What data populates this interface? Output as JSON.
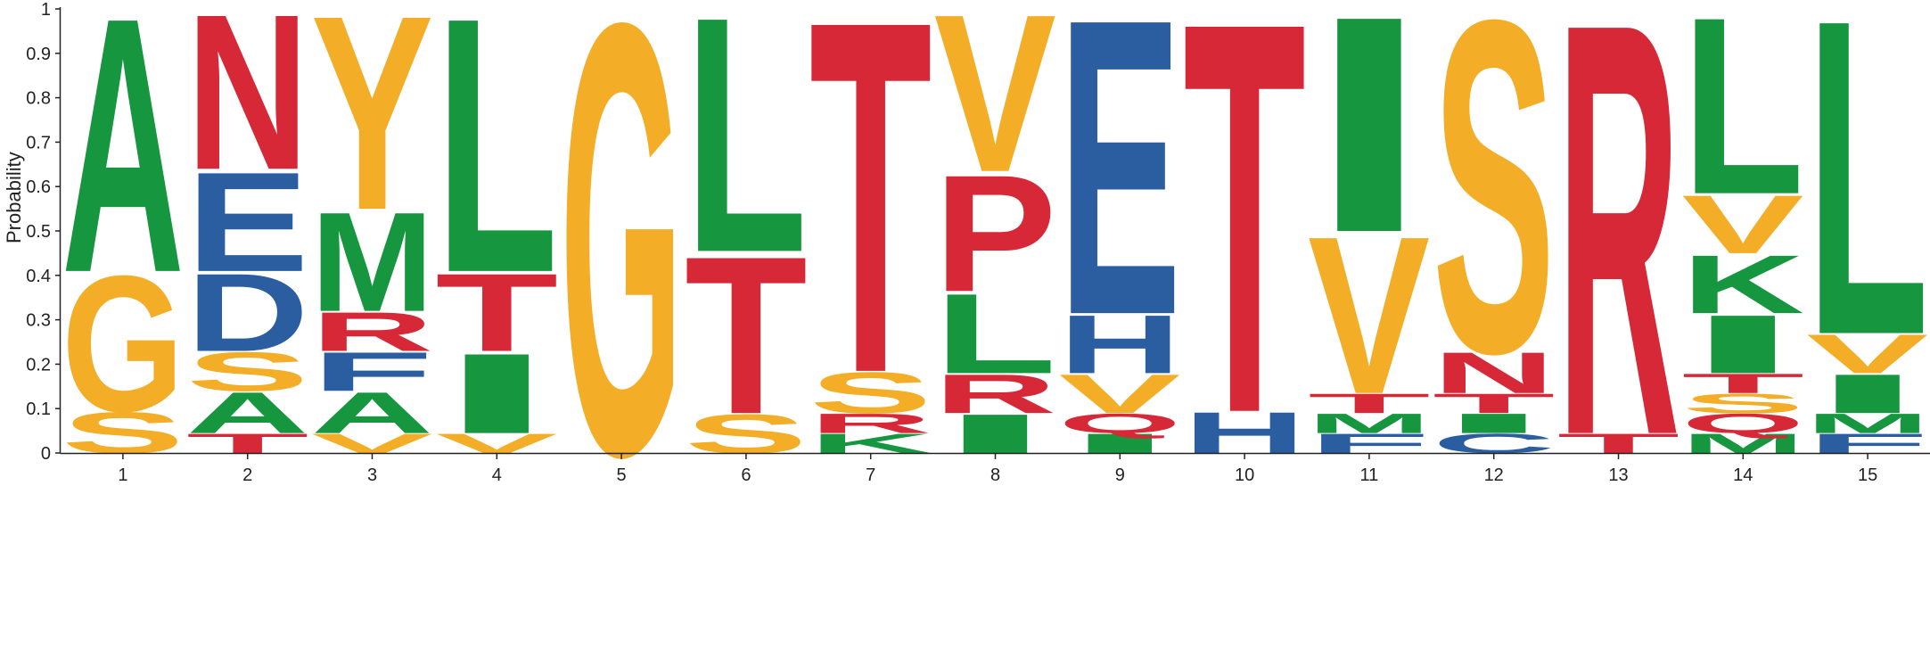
{
  "colors": {
    "green": "#16963f",
    "red": "#d62837",
    "orange": "#f3ad27",
    "blue": "#2a5ea1",
    "axis": "#222222"
  },
  "chart_data": {
    "type": "sequence-logo",
    "title": "",
    "xlabel": "",
    "ylabel": "Probability",
    "ylim": [
      0,
      1
    ],
    "yticks": [
      "0",
      "0.1",
      "0.2",
      "0.3",
      "0.4",
      "0.5",
      "0.6",
      "0.7",
      "0.8",
      "0.9",
      "1"
    ],
    "positions": [
      {
        "label": "1",
        "letters": [
          {
            "letter": "S",
            "color": "orange",
            "prob": 0.095
          },
          {
            "letter": "G",
            "color": "orange",
            "prob": 0.315
          },
          {
            "letter": "A",
            "color": "green",
            "prob": 0.59
          }
        ]
      },
      {
        "label": "2",
        "letters": [
          {
            "letter": "T",
            "color": "red",
            "prob": 0.045
          },
          {
            "letter": "A",
            "color": "green",
            "prob": 0.095
          },
          {
            "letter": "S",
            "color": "orange",
            "prob": 0.09
          },
          {
            "letter": "D",
            "color": "blue",
            "prob": 0.18
          },
          {
            "letter": "E",
            "color": "blue",
            "prob": 0.23
          },
          {
            "letter": "N",
            "color": "red",
            "prob": 0.36
          }
        ]
      },
      {
        "label": "3",
        "letters": [
          {
            "letter": "V",
            "color": "orange",
            "prob": 0.045
          },
          {
            "letter": "A",
            "color": "green",
            "prob": 0.095
          },
          {
            "letter": "F",
            "color": "blue",
            "prob": 0.09
          },
          {
            "letter": "R",
            "color": "red",
            "prob": 0.09
          },
          {
            "letter": "M",
            "color": "green",
            "prob": 0.23
          },
          {
            "letter": "Y",
            "color": "orange",
            "prob": 0.45
          }
        ]
      },
      {
        "label": "4",
        "letters": [
          {
            "letter": "V",
            "color": "orange",
            "prob": 0.045
          },
          {
            "letter": "I",
            "color": "green",
            "prob": 0.185
          },
          {
            "letter": "T",
            "color": "red",
            "prob": 0.18
          },
          {
            "letter": "L",
            "color": "green",
            "prob": 0.59
          }
        ]
      },
      {
        "label": "5",
        "letters": [
          {
            "letter": "G",
            "color": "orange",
            "prob": 1.0
          }
        ]
      },
      {
        "label": "6",
        "letters": [
          {
            "letter": "S",
            "color": "orange",
            "prob": 0.09
          },
          {
            "letter": "T",
            "color": "red",
            "prob": 0.365
          },
          {
            "letter": "L",
            "color": "green",
            "prob": 0.545
          }
        ]
      },
      {
        "label": "7",
        "letters": [
          {
            "letter": "K",
            "color": "green",
            "prob": 0.045
          },
          {
            "letter": "R",
            "color": "red",
            "prob": 0.045
          },
          {
            "letter": "S",
            "color": "orange",
            "prob": 0.095
          },
          {
            "letter": "T",
            "color": "red",
            "prob": 0.815
          }
        ]
      },
      {
        "label": "8",
        "letters": [
          {
            "letter": "I",
            "color": "green",
            "prob": 0.09
          },
          {
            "letter": "R",
            "color": "red",
            "prob": 0.09
          },
          {
            "letter": "L",
            "color": "green",
            "prob": 0.185
          },
          {
            "letter": "P",
            "color": "red",
            "prob": 0.27
          },
          {
            "letter": "V",
            "color": "orange",
            "prob": 0.365
          }
        ]
      },
      {
        "label": "9",
        "letters": [
          {
            "letter": "I",
            "color": "green",
            "prob": 0.045
          },
          {
            "letter": "Q",
            "color": "red",
            "prob": 0.045
          },
          {
            "letter": "V",
            "color": "orange",
            "prob": 0.09
          },
          {
            "letter": "H",
            "color": "blue",
            "prob": 0.135
          },
          {
            "letter": "E",
            "color": "blue",
            "prob": 0.685
          }
        ]
      },
      {
        "label": "10",
        "letters": [
          {
            "letter": "H",
            "color": "blue",
            "prob": 0.095
          },
          {
            "letter": "T",
            "color": "red",
            "prob": 0.905
          }
        ]
      },
      {
        "label": "11",
        "letters": [
          {
            "letter": "F",
            "color": "blue",
            "prob": 0.045
          },
          {
            "letter": "M",
            "color": "green",
            "prob": 0.045
          },
          {
            "letter": "T",
            "color": "red",
            "prob": 0.045
          },
          {
            "letter": "V",
            "color": "orange",
            "prob": 0.365
          },
          {
            "letter": "I",
            "color": "green",
            "prob": 0.5
          }
        ]
      },
      {
        "label": "12",
        "letters": [
          {
            "letter": "C",
            "color": "blue",
            "prob": 0.045
          },
          {
            "letter": "I",
            "color": "green",
            "prob": 0.045
          },
          {
            "letter": "T",
            "color": "red",
            "prob": 0.045
          },
          {
            "letter": "N",
            "color": "red",
            "prob": 0.095
          },
          {
            "letter": "S",
            "color": "orange",
            "prob": 0.77
          }
        ]
      },
      {
        "label": "13",
        "letters": [
          {
            "letter": "T",
            "color": "red",
            "prob": 0.045
          },
          {
            "letter": "R",
            "color": "red",
            "prob": 0.955
          }
        ]
      },
      {
        "label": "14",
        "letters": [
          {
            "letter": "M",
            "color": "green",
            "prob": 0.045
          },
          {
            "letter": "Q",
            "color": "red",
            "prob": 0.045
          },
          {
            "letter": "S",
            "color": "orange",
            "prob": 0.045
          },
          {
            "letter": "T",
            "color": "red",
            "prob": 0.045
          },
          {
            "letter": "I",
            "color": "green",
            "prob": 0.135
          },
          {
            "letter": "K",
            "color": "green",
            "prob": 0.135
          },
          {
            "letter": "V",
            "color": "orange",
            "prob": 0.135
          },
          {
            "letter": "L",
            "color": "green",
            "prob": 0.41
          }
        ]
      },
      {
        "label": "15",
        "letters": [
          {
            "letter": "F",
            "color": "blue",
            "prob": 0.045
          },
          {
            "letter": "M",
            "color": "green",
            "prob": 0.045
          },
          {
            "letter": "I",
            "color": "green",
            "prob": 0.09
          },
          {
            "letter": "V",
            "color": "orange",
            "prob": 0.09
          },
          {
            "letter": "L",
            "color": "green",
            "prob": 0.73
          }
        ]
      }
    ]
  }
}
